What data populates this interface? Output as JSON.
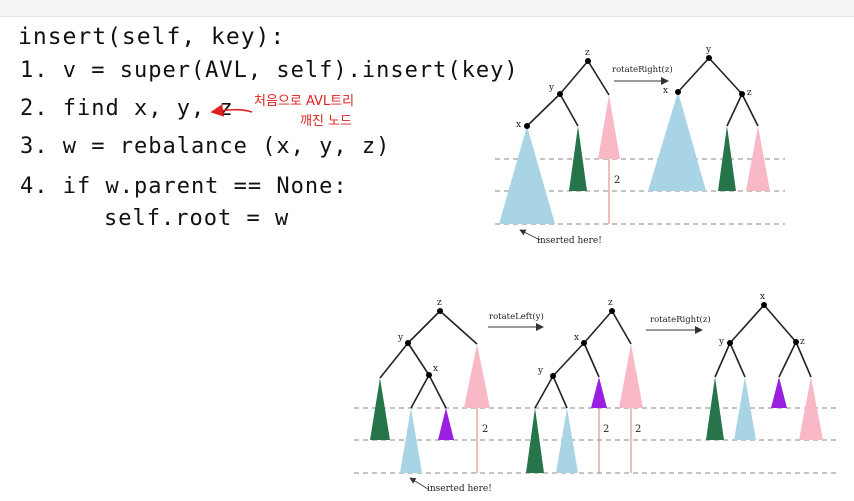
{
  "notes": {
    "line0": "insert(self, key):",
    "line1": "1. v = super(AVL, self).insert(key)",
    "line2": "2. find  x, y, z",
    "annotation1": "처음으로 AVL트리",
    "annotation2": "깨진 노드",
    "line3": "3. w = rebalance (x, y, z)",
    "line4": "4. if w.parent == None:",
    "line5": "self.root = w"
  },
  "diagram": {
    "labels": {
      "x": "x",
      "y": "y",
      "z": "z",
      "two": "2"
    },
    "op_right": "rotateRight(z)",
    "op_left": "rotateLeft(y)",
    "inserted": "inserted here!"
  },
  "colors": {
    "blue": "#a8d4e6",
    "green": "#25744a",
    "pink": "#f8b8c6",
    "purple": "#9b1fe0",
    "red_ink": "#e02020",
    "dashed": "#888888"
  }
}
